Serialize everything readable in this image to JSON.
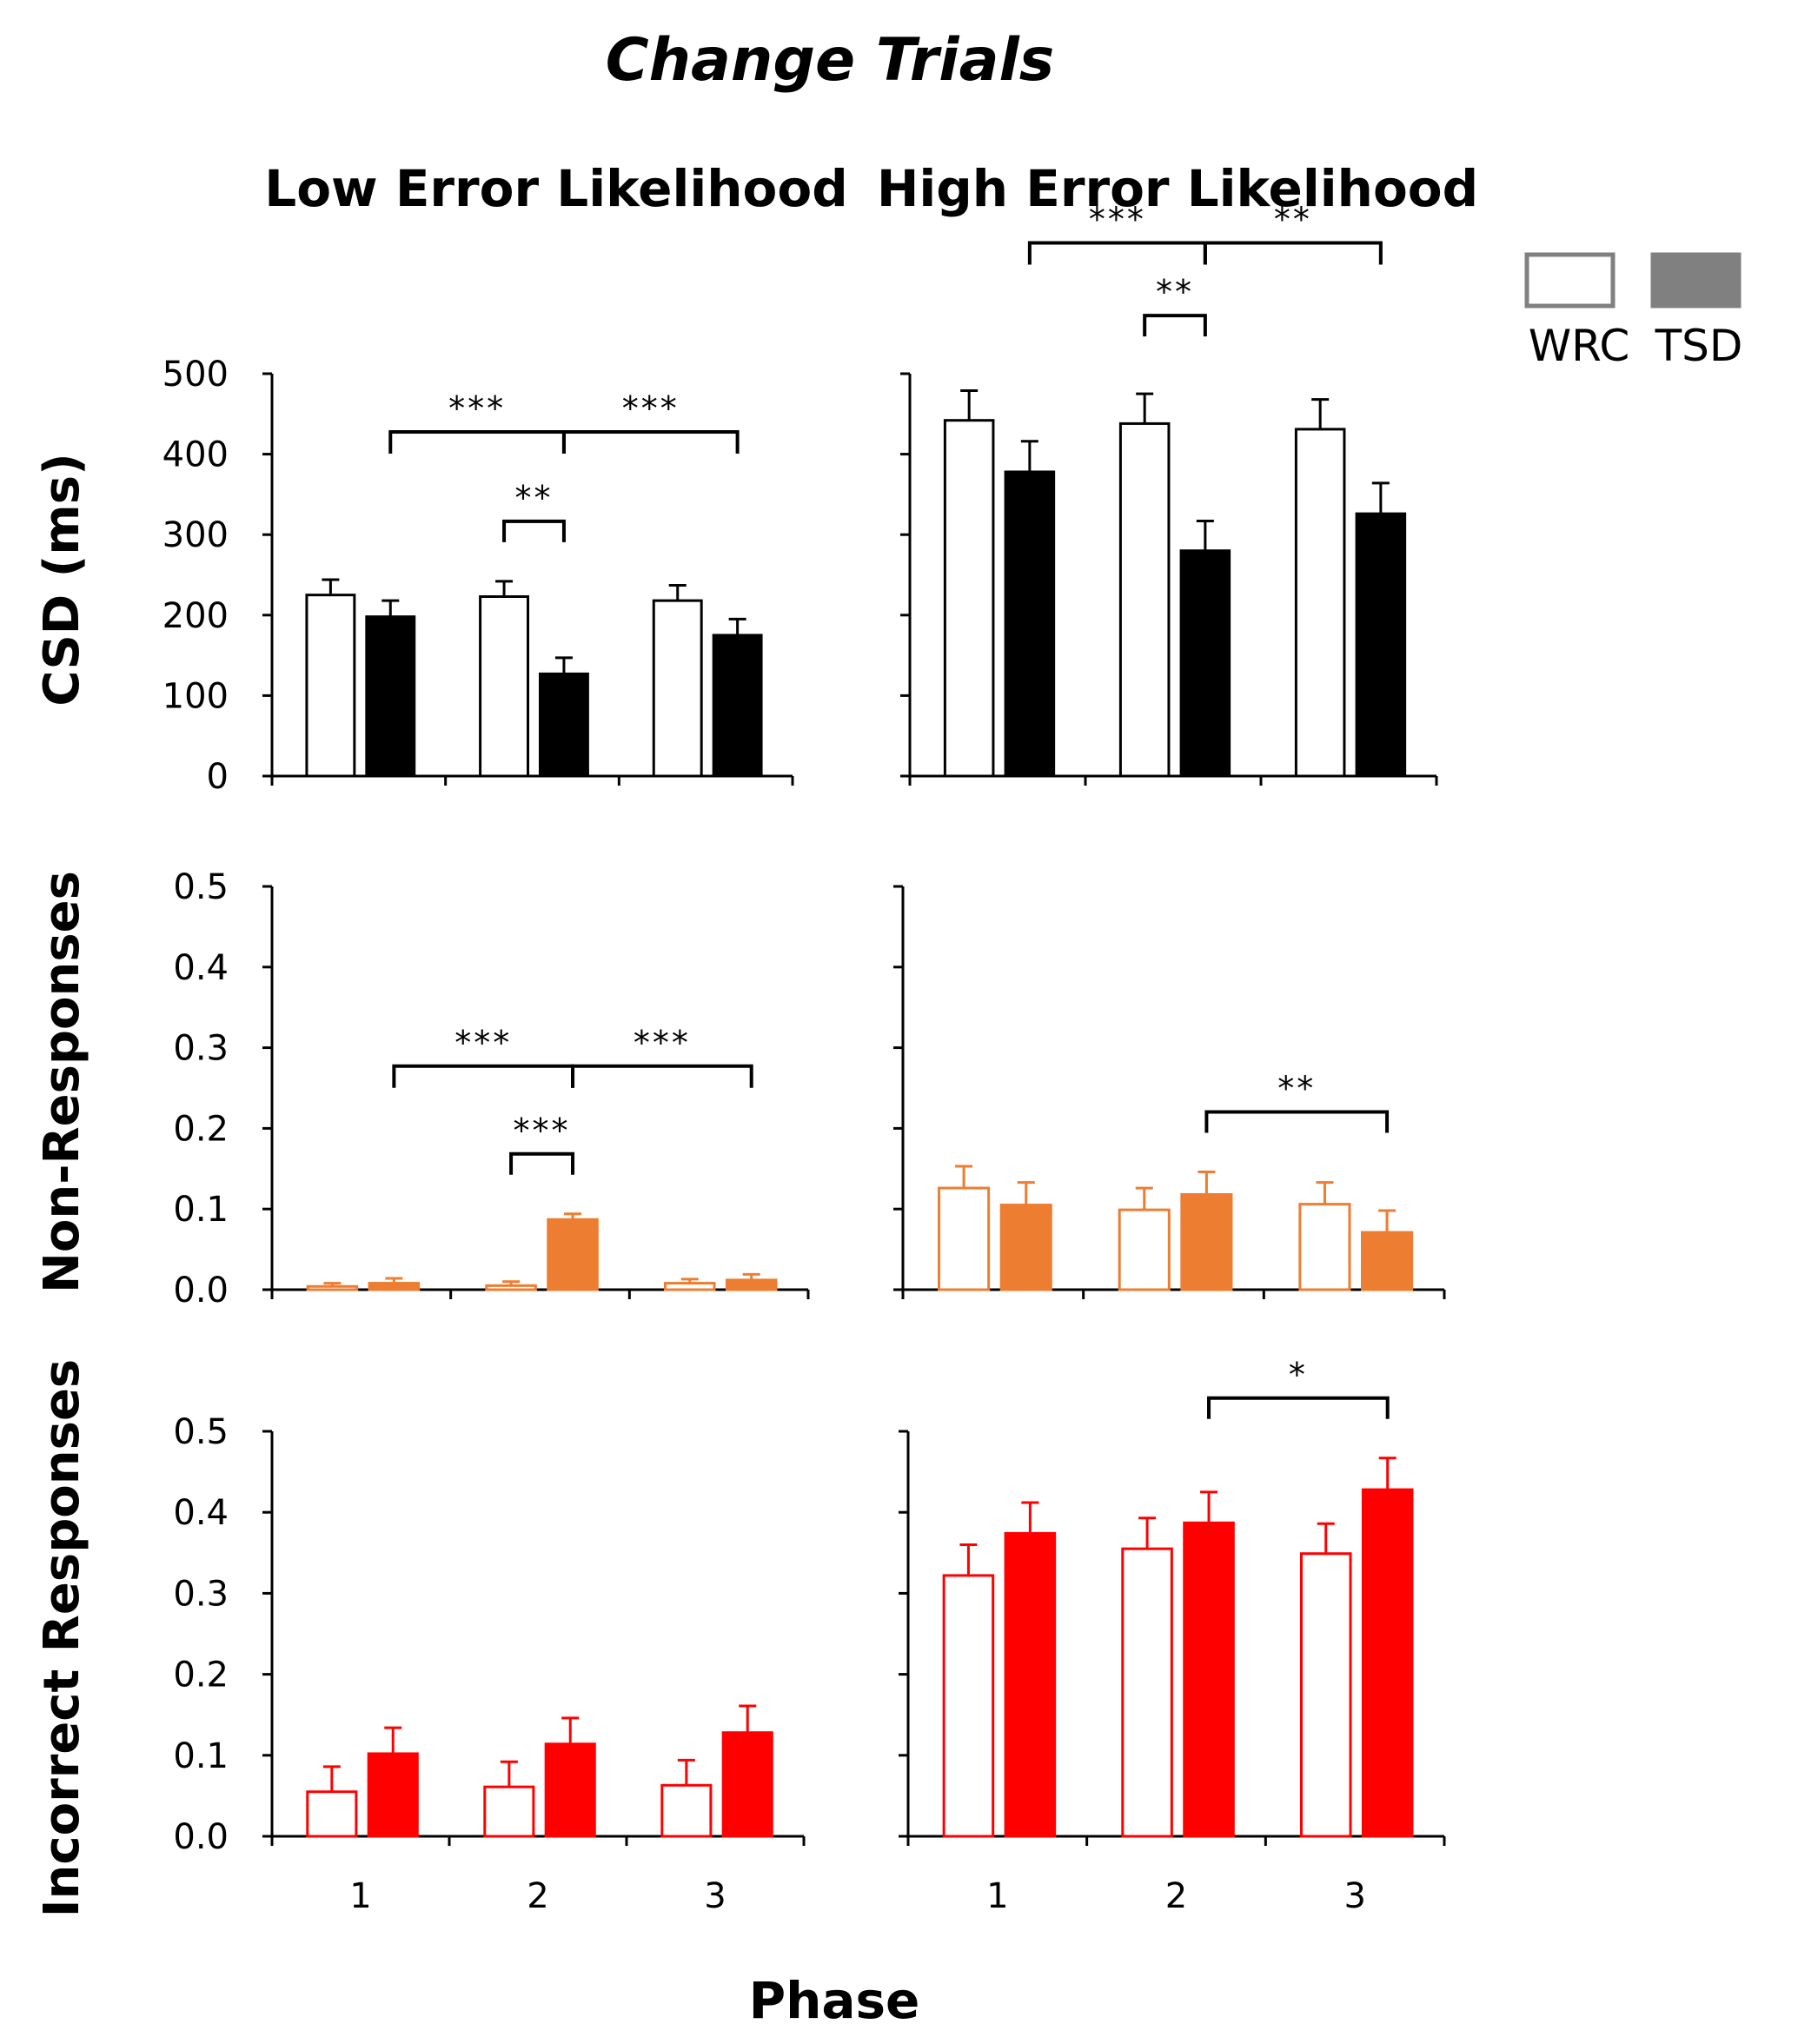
{
  "figure": {
    "title": "Change Trials",
    "columns": [
      "Low Error Likelihood",
      "High Error Likelihood"
    ],
    "xlabel": "Phase",
    "legend": [
      {
        "label": "WRC",
        "style": "open"
      },
      {
        "label": "TSD",
        "style": "filled"
      }
    ],
    "colors": {
      "legend_box": "#808080",
      "csd": "#000000",
      "nonresp": "#ED7D31",
      "incorrect": "#FF0000"
    }
  },
  "chart_data": [
    {
      "type": "bar",
      "id": "csd-low",
      "row": 0,
      "col": 0,
      "ylabel": "CSD (ms)",
      "ylim": [
        0,
        500
      ],
      "yticks": [
        "0",
        "100",
        "200",
        "300",
        "400",
        "500"
      ],
      "categories": [
        "1",
        "2",
        "3"
      ],
      "series": [
        {
          "name": "WRC",
          "values": [
            225,
            223,
            218
          ],
          "errors": [
            19,
            19,
            19
          ]
        },
        {
          "name": "TSD",
          "values": [
            198,
            127,
            175
          ],
          "errors": [
            20,
            20,
            20
          ]
        }
      ],
      "significance": [
        {
          "from": "1-TSD",
          "to": "2-TSD",
          "label": "***",
          "level": 2
        },
        {
          "from": "2-TSD",
          "to": "3-TSD",
          "label": "***",
          "level": 2
        },
        {
          "from": "2-WRC",
          "to": "2-TSD",
          "label": "**",
          "level": 1
        }
      ]
    },
    {
      "type": "bar",
      "id": "csd-high",
      "row": 0,
      "col": 1,
      "ylabel": "CSD (ms)",
      "ylim": [
        0,
        500
      ],
      "yticks": [
        "0",
        "100",
        "200",
        "300",
        "400",
        "500"
      ],
      "categories": [
        "1",
        "2",
        "3"
      ],
      "series": [
        {
          "name": "WRC",
          "values": [
            442,
            438,
            431
          ],
          "errors": [
            37,
            37,
            37
          ]
        },
        {
          "name": "TSD",
          "values": [
            378,
            280,
            326
          ],
          "errors": [
            38,
            37,
            38
          ]
        }
      ],
      "significance": [
        {
          "from": "1-TSD",
          "to": "2-TSD",
          "label": "***",
          "level": 2
        },
        {
          "from": "2-TSD",
          "to": "3-TSD",
          "label": "**",
          "level": 2
        },
        {
          "from": "2-WRC",
          "to": "2-TSD",
          "label": "**",
          "level": 1
        }
      ]
    },
    {
      "type": "bar",
      "id": "nonresp-low",
      "row": 1,
      "col": 0,
      "ylabel": "Non-Responses",
      "ylim": [
        0,
        0.5
      ],
      "yticks": [
        "0.0",
        "0.1",
        "0.2",
        "0.3",
        "0.4",
        "0.5"
      ],
      "categories": [
        "1",
        "2",
        "3"
      ],
      "series": [
        {
          "name": "WRC",
          "values": [
            0.004,
            0.005,
            0.008
          ],
          "errors": [
            0.004,
            0.005,
            0.005
          ]
        },
        {
          "name": "TSD",
          "values": [
            0.008,
            0.087,
            0.012
          ],
          "errors": [
            0.006,
            0.007,
            0.007
          ]
        }
      ],
      "significance": [
        {
          "from": "1-TSD",
          "to": "2-TSD",
          "label": "***",
          "level": 2
        },
        {
          "from": "2-TSD",
          "to": "3-TSD",
          "label": "***",
          "level": 2
        },
        {
          "from": "2-WRC",
          "to": "2-TSD",
          "label": "***",
          "level": 1
        }
      ]
    },
    {
      "type": "bar",
      "id": "nonresp-high",
      "row": 1,
      "col": 1,
      "ylabel": "Non-Responses",
      "ylim": [
        0,
        0.5
      ],
      "yticks": [
        "0.0",
        "0.1",
        "0.2",
        "0.3",
        "0.4",
        "0.5"
      ],
      "categories": [
        "1",
        "2",
        "3"
      ],
      "series": [
        {
          "name": "WRC",
          "values": [
            0.126,
            0.099,
            0.106
          ],
          "errors": [
            0.027,
            0.027,
            0.027
          ]
        },
        {
          "name": "TSD",
          "values": [
            0.105,
            0.118,
            0.071
          ],
          "errors": [
            0.028,
            0.028,
            0.027
          ]
        }
      ],
      "significance": [
        {
          "from": "2-TSD",
          "to": "3-TSD",
          "label": "**",
          "level": 1
        }
      ]
    },
    {
      "type": "bar",
      "id": "incorrect-low",
      "row": 2,
      "col": 0,
      "ylabel": "Incorrect Responses",
      "ylim": [
        0,
        0.5
      ],
      "yticks": [
        "0.0",
        "0.1",
        "0.2",
        "0.3",
        "0.4",
        "0.5"
      ],
      "categories": [
        "1",
        "2",
        "3"
      ],
      "series": [
        {
          "name": "WRC",
          "values": [
            0.055,
            0.061,
            0.063
          ],
          "errors": [
            0.031,
            0.031,
            0.031
          ]
        },
        {
          "name": "TSD",
          "values": [
            0.102,
            0.114,
            0.128
          ],
          "errors": [
            0.032,
            0.032,
            0.033
          ]
        }
      ],
      "significance": []
    },
    {
      "type": "bar",
      "id": "incorrect-high",
      "row": 2,
      "col": 1,
      "ylabel": "Incorrect Responses",
      "ylim": [
        0,
        0.5
      ],
      "yticks": [
        "0.0",
        "0.1",
        "0.2",
        "0.3",
        "0.4",
        "0.5"
      ],
      "categories": [
        "1",
        "2",
        "3"
      ],
      "series": [
        {
          "name": "WRC",
          "values": [
            0.322,
            0.355,
            0.349
          ],
          "errors": [
            0.038,
            0.038,
            0.037
          ]
        },
        {
          "name": "TSD",
          "values": [
            0.374,
            0.387,
            0.428
          ],
          "errors": [
            0.038,
            0.038,
            0.039
          ]
        }
      ],
      "significance": [
        {
          "from": "2-TSD",
          "to": "3-TSD",
          "label": "*",
          "level": 1
        }
      ]
    }
  ]
}
